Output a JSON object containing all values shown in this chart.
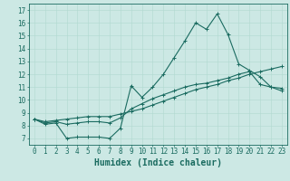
{
  "xlabel": "Humidex (Indice chaleur)",
  "background_color": "#cce8e4",
  "line_color": "#1a6b60",
  "grid_color": "#b0d8d0",
  "xlim": [
    -0.5,
    23.5
  ],
  "ylim": [
    6.5,
    17.5
  ],
  "xticks": [
    0,
    1,
    2,
    3,
    4,
    5,
    6,
    7,
    8,
    9,
    10,
    11,
    12,
    13,
    14,
    15,
    16,
    17,
    18,
    19,
    20,
    21,
    22,
    23
  ],
  "yticks": [
    7,
    8,
    9,
    10,
    11,
    12,
    13,
    14,
    15,
    16,
    17
  ],
  "line1_x": [
    0,
    1,
    2,
    3,
    4,
    5,
    6,
    7,
    8,
    9,
    10,
    11,
    12,
    13,
    14,
    15,
    16,
    17,
    18,
    19,
    20,
    21,
    22,
    23
  ],
  "line1_y": [
    8.5,
    8.1,
    8.2,
    7.0,
    7.1,
    7.1,
    7.1,
    7.0,
    7.8,
    11.1,
    10.2,
    11.0,
    12.0,
    13.3,
    14.6,
    16.0,
    15.5,
    16.7,
    15.1,
    12.8,
    12.3,
    11.8,
    11.0,
    10.7
  ],
  "line2_x": [
    0,
    1,
    2,
    3,
    4,
    5,
    6,
    7,
    8,
    9,
    10,
    11,
    12,
    13,
    14,
    15,
    16,
    17,
    18,
    19,
    20,
    21,
    22,
    23
  ],
  "line2_y": [
    8.5,
    8.3,
    8.4,
    8.5,
    8.6,
    8.7,
    8.7,
    8.7,
    8.9,
    9.1,
    9.3,
    9.6,
    9.9,
    10.2,
    10.5,
    10.8,
    11.0,
    11.2,
    11.5,
    11.7,
    12.0,
    12.2,
    12.4,
    12.6
  ],
  "line3_x": [
    0,
    1,
    2,
    3,
    4,
    5,
    6,
    7,
    8,
    9,
    10,
    11,
    12,
    13,
    14,
    15,
    16,
    17,
    18,
    19,
    20,
    21,
    22,
    23
  ],
  "line3_y": [
    8.5,
    8.2,
    8.3,
    8.1,
    8.2,
    8.3,
    8.3,
    8.2,
    8.6,
    9.3,
    9.7,
    10.1,
    10.4,
    10.7,
    11.0,
    11.2,
    11.3,
    11.5,
    11.7,
    12.0,
    12.2,
    11.2,
    11.0,
    10.9
  ],
  "tick_fontsize": 5.5,
  "xlabel_fontsize": 7.0,
  "marker": "+"
}
